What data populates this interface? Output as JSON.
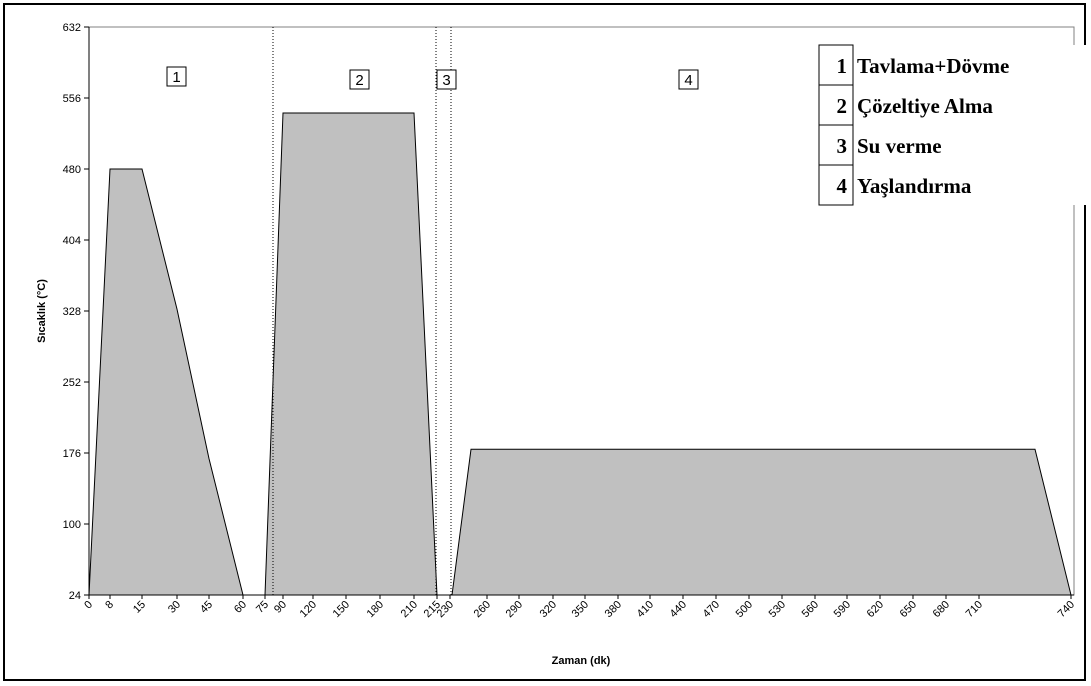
{
  "chart_data": {
    "type": "area",
    "title": "",
    "xlabel": "Zaman (dk)",
    "ylabel": "Sıcaklık (°C)",
    "ylim": [
      24,
      632
    ],
    "y_ticks": [
      24,
      100,
      176,
      252,
      328,
      404,
      480,
      556,
      632
    ],
    "x_tick_labels": [
      "0",
      "8",
      "15",
      "30",
      "45",
      "60",
      "75",
      "90",
      "120",
      "150",
      "180",
      "210",
      "215",
      "230",
      "260",
      "290",
      "320",
      "350",
      "380",
      "410",
      "440",
      "470",
      "500",
      "530",
      "560",
      "590",
      "620",
      "650",
      "680",
      "710",
      "740"
    ],
    "series": [
      {
        "x": [
          "0",
          "8",
          "15",
          "30",
          "45",
          "60",
          "75",
          "90",
          "120",
          "150",
          "180",
          "210",
          "215",
          "230",
          "260",
          "290",
          "320",
          "350",
          "380",
          "410",
          "440",
          "470",
          "500",
          "530",
          "560",
          "590",
          "620",
          "650",
          "680",
          "710",
          "740"
        ],
        "values": [
          24,
          480,
          480,
          330,
          170,
          24,
          24,
          540,
          540,
          540,
          540,
          540,
          24,
          180,
          180,
          180,
          180,
          180,
          180,
          180,
          180,
          180,
          180,
          180,
          180,
          180,
          180,
          180,
          180,
          180,
          24
        ]
      }
    ],
    "grid": false,
    "phase_markers": [
      "1",
      "2",
      "3",
      "4"
    ],
    "legend": {
      "placement": "top-right",
      "entries": [
        {
          "num": "1",
          "label": "Tavlama+Dövme"
        },
        {
          "num": "2",
          "label": "Çözeltiye Alma"
        },
        {
          "num": "3",
          "label": "Su verme"
        },
        {
          "num": "4",
          "label": "Yaşlandırma"
        }
      ]
    },
    "colors": {
      "fill": "#c0c0c0",
      "stroke": "#000000"
    }
  }
}
